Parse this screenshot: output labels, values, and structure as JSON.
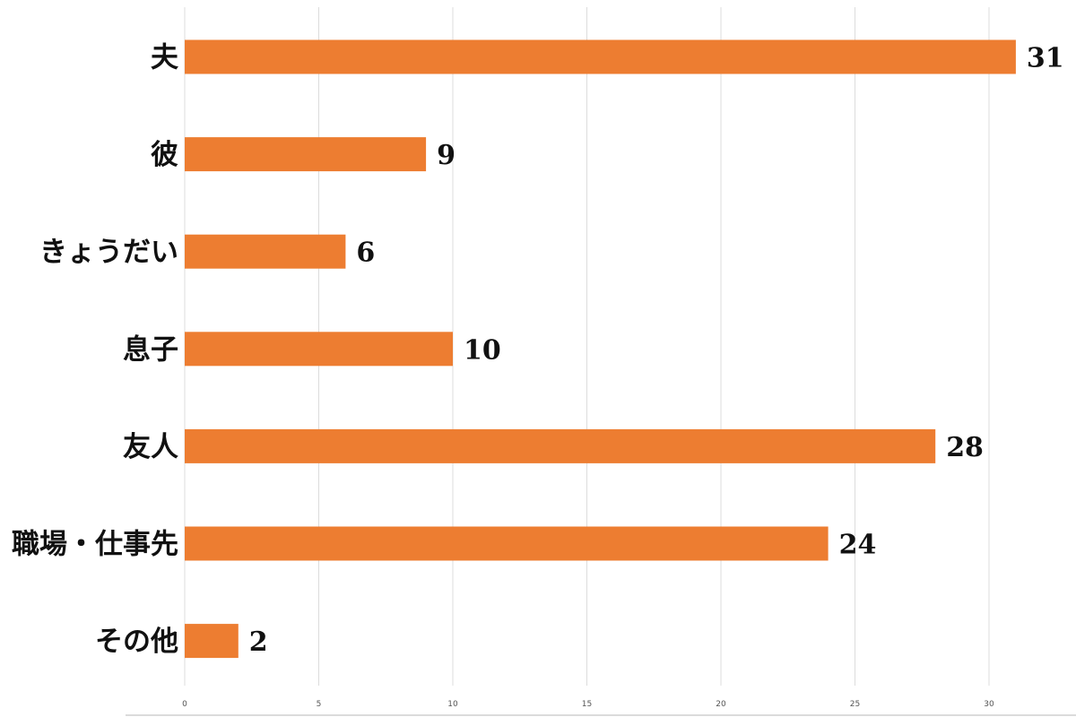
{
  "chart_data": {
    "type": "bar",
    "orientation": "horizontal",
    "categories": [
      "夫",
      "彼",
      "きょうだい",
      "息子",
      "友人",
      "職場・仕事先",
      "その他"
    ],
    "values": [
      31,
      9,
      6,
      10,
      28,
      24,
      2
    ],
    "title": "",
    "xlabel": "",
    "ylabel": "",
    "xlim": [
      0,
      33
    ],
    "xticks": [
      0,
      5,
      10,
      15,
      20,
      25,
      30
    ],
    "grid": "vertical",
    "legend": "none",
    "bar_color": "#ED7D31",
    "data_labels": true
  }
}
